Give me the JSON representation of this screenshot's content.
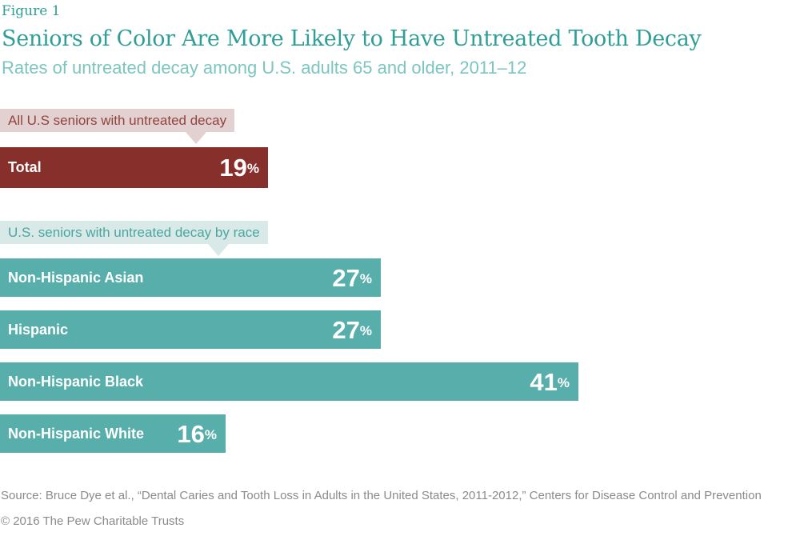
{
  "figure_label": "Figure 1",
  "title": "Seniors of Color Are More Likely to Have Untreated Tooth Decay",
  "subtitle": "Rates of untreated decay among U.S. adults 65 and older, 2011–12",
  "colors": {
    "header_teal": "#2f9e96",
    "subtitle_teal": "#7cc5c0",
    "total_bar": "#872f2a",
    "total_callout_bg": "#e3d1d1",
    "total_callout_text": "#90443e",
    "race_bar": "#58aeab",
    "race_callout_bg": "#d8e9e7",
    "race_callout_text": "#4ba6a1",
    "footer_gray": "#8b8b8b",
    "bar_text": "#ffffff"
  },
  "chart_data": {
    "type": "bar",
    "orientation": "horizontal",
    "unit": "%",
    "xlim": [
      0,
      56
    ],
    "grid": false,
    "legend": false,
    "title": "Seniors of Color Are More Likely to Have Untreated Tooth Decay",
    "subtitle": "Rates of untreated decay among U.S. adults 65 and older, 2011–12",
    "groups": [
      {
        "callout": "All U.S seniors with untreated decay",
        "bars": [
          {
            "label": "Total",
            "value": 19
          }
        ]
      },
      {
        "callout": "U.S. seniors with untreated decay by race",
        "bars": [
          {
            "label": "Non-Hispanic Asian",
            "value": 27
          },
          {
            "label": "Hispanic",
            "value": 27
          },
          {
            "label": "Non-Hispanic Black",
            "value": 41
          },
          {
            "label": "Non-Hispanic White",
            "value": 16
          }
        ]
      }
    ]
  },
  "footer": {
    "source": "Source: Bruce Dye et al., “Dental Caries and Tooth Loss in Adults in the United States, 2011-2012,” Centers for Disease Control and Prevention",
    "copyright": "© 2016 The Pew Charitable Trusts"
  }
}
